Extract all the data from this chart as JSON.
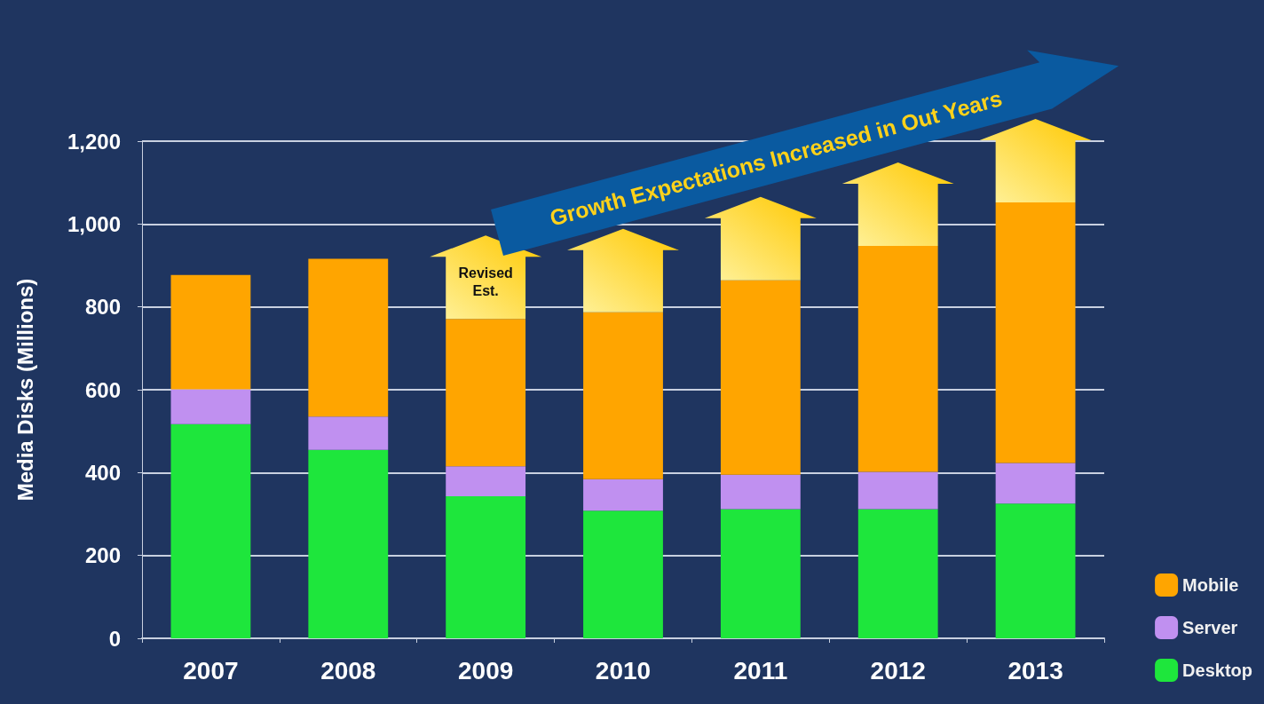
{
  "chart_data": {
    "type": "bar",
    "stacked": true,
    "ylabel": "Media Disks (Millions)",
    "categories": [
      "2007",
      "2008",
      "2009",
      "2010",
      "2011",
      "2012",
      "2013"
    ],
    "series": [
      {
        "name": "Desktop",
        "color": "#1ee63c",
        "values": [
          517,
          455,
          343,
          308,
          312,
          312,
          325
        ]
      },
      {
        "name": "Server",
        "color": "#c090f0",
        "values": [
          84,
          80,
          72,
          76,
          83,
          90,
          98
        ]
      },
      {
        "name": "Mobile",
        "color": "#ffa500",
        "values": [
          276,
          381,
          356,
          403,
          469,
          545,
          629
        ]
      }
    ],
    "ylim": [
      0,
      1200
    ],
    "yticks": [
      0,
      200,
      400,
      600,
      800,
      {
        "value": 1000,
        "label": "1,000"
      },
      {
        "value": 1200,
        "label": "1,200"
      }
    ],
    "grid": "y",
    "legend": "bottom right",
    "annotations": [
      "Revised\nEst.",
      "Growth Expectations Increased in Out Years"
    ]
  }
}
